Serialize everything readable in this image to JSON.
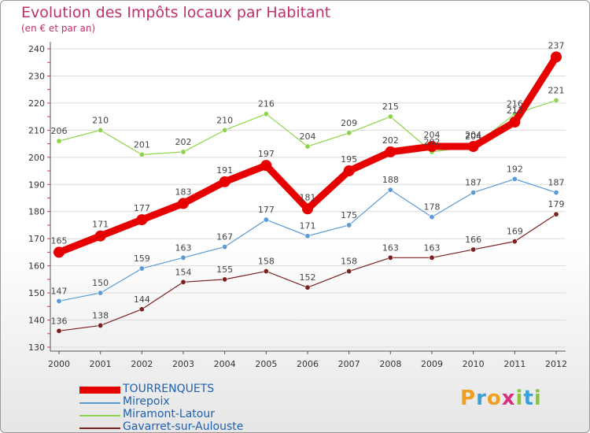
{
  "chart_data": {
    "type": "line",
    "title": "Evolution des Impôts locaux par Habitant",
    "subtitle": "(en € et par an)",
    "xlabel": "",
    "ylabel": "",
    "ylim": [
      130,
      240
    ],
    "yticks": [
      130,
      140,
      150,
      160,
      170,
      180,
      190,
      200,
      210,
      220,
      230,
      240
    ],
    "categories": [
      "2000",
      "2001",
      "2002",
      "2003",
      "2004",
      "2005",
      "2006",
      "2007",
      "2008",
      "2009",
      "2010",
      "2011",
      "2012"
    ],
    "series": [
      {
        "name": "TOURRENQUETS",
        "color": "#e60000",
        "values": [
          165,
          171,
          177,
          183,
          191,
          197,
          181,
          195,
          202,
          204,
          204,
          213,
          237
        ]
      },
      {
        "name": "Mirepoix",
        "color": "#5b9bd5",
        "values": [
          147,
          150,
          159,
          163,
          167,
          177,
          171,
          175,
          188,
          178,
          187,
          192,
          187
        ]
      },
      {
        "name": "Miramont-Latour",
        "color": "#8ed44a",
        "values": [
          206,
          210,
          201,
          202,
          210,
          216,
          204,
          209,
          215,
          202,
          204,
          216,
          221
        ]
      },
      {
        "name": "Gavarret-sur-Aulouste",
        "color": "#7b2020",
        "values": [
          136,
          138,
          144,
          154,
          155,
          158,
          152,
          158,
          163,
          163,
          166,
          169,
          179
        ]
      }
    ]
  },
  "logo": {
    "letters": [
      "P",
      "r",
      "o",
      "x",
      "i",
      "t",
      "i"
    ],
    "colors": [
      "#f0a020",
      "#3aa0d8",
      "#f0a020",
      "#d83080",
      "#8ac43a",
      "#3aa0d8",
      "#8ac43a"
    ]
  }
}
